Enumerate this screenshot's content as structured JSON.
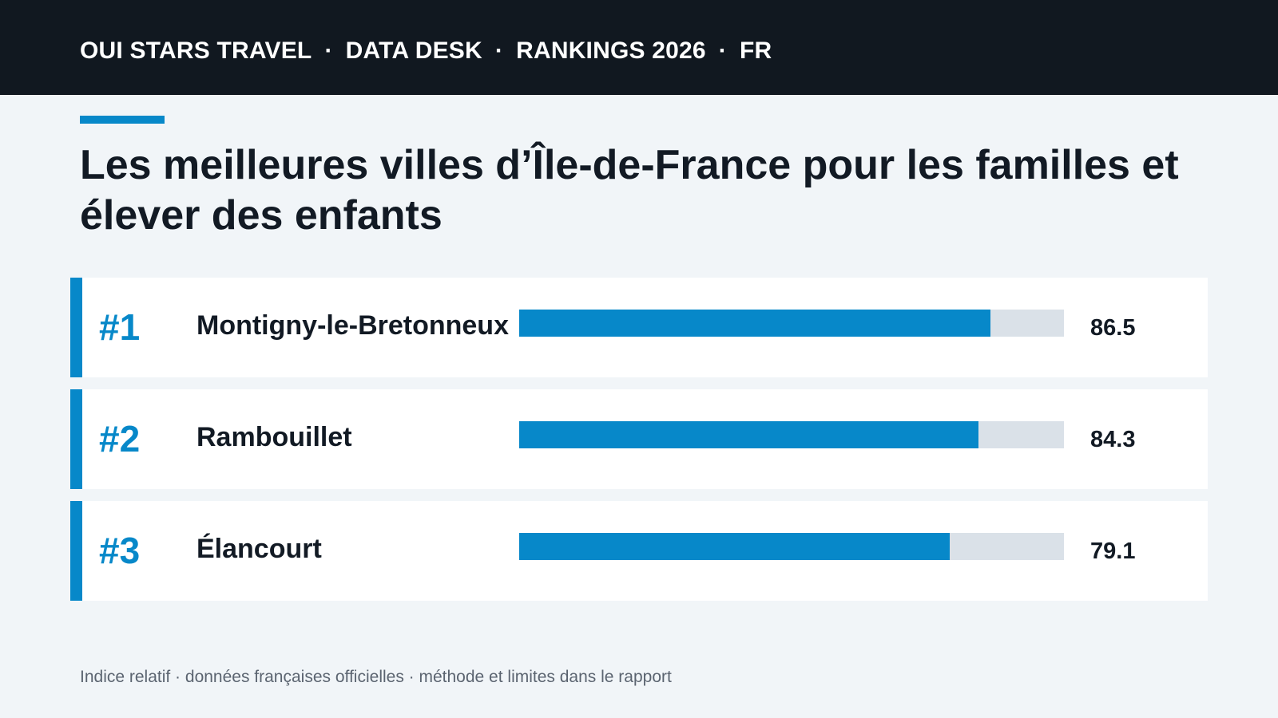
{
  "header": {
    "parts": [
      "OUI STARS TRAVEL",
      "DATA DESK",
      "RANKINGS 2026",
      "FR"
    ],
    "separator": "·"
  },
  "title": "Les meilleures villes d’Île-de-France pour les familles et élever des enfants",
  "footnote": "Indice relatif · données françaises officielles · méthode et limites dans le rapport",
  "colors": {
    "accent": "#0788c9",
    "track": "#dae1e8",
    "header_bg": "#111820",
    "page_bg": "#f1f5f8"
  },
  "chart_data": {
    "type": "bar",
    "orientation": "horizontal",
    "title": "Les meilleures villes d’Île-de-France pour les familles et élever des enfants",
    "xlim": [
      0,
      100
    ],
    "grid": false,
    "rows": [
      {
        "rank": "#1",
        "city": "Montigny-le-Bretonneux",
        "value": 86.5,
        "value_label": "86.5"
      },
      {
        "rank": "#2",
        "city": "Rambouillet",
        "value": 84.3,
        "value_label": "84.3"
      },
      {
        "rank": "#3",
        "city": "Élancourt",
        "value": 79.1,
        "value_label": "79.1"
      }
    ]
  }
}
